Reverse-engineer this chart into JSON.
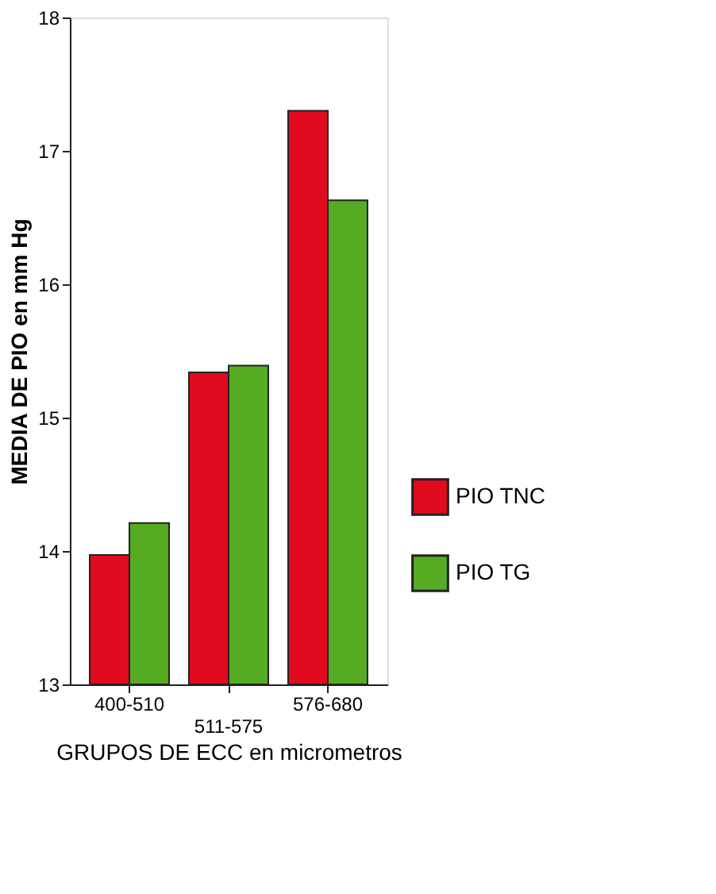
{
  "chart_data": {
    "type": "bar",
    "xlabel": "GRUPOS DE ECC  en micrometros",
    "ylabel": "MEDIA DE PIO en mm Hg",
    "categories": [
      "400-510",
      "511-575",
      "576-680"
    ],
    "series": [
      {
        "name": "PIO TNC",
        "color": "#e20a1e",
        "values": [
          13.97,
          15.34,
          17.3
        ]
      },
      {
        "name": "PIO TG",
        "color": "#55ab22",
        "values": [
          14.21,
          15.39,
          16.63
        ]
      }
    ],
    "ylim": [
      13,
      18
    ],
    "yticks": [
      13,
      14,
      15,
      16,
      17,
      18
    ],
    "grid": false,
    "legend": "bottom right"
  }
}
